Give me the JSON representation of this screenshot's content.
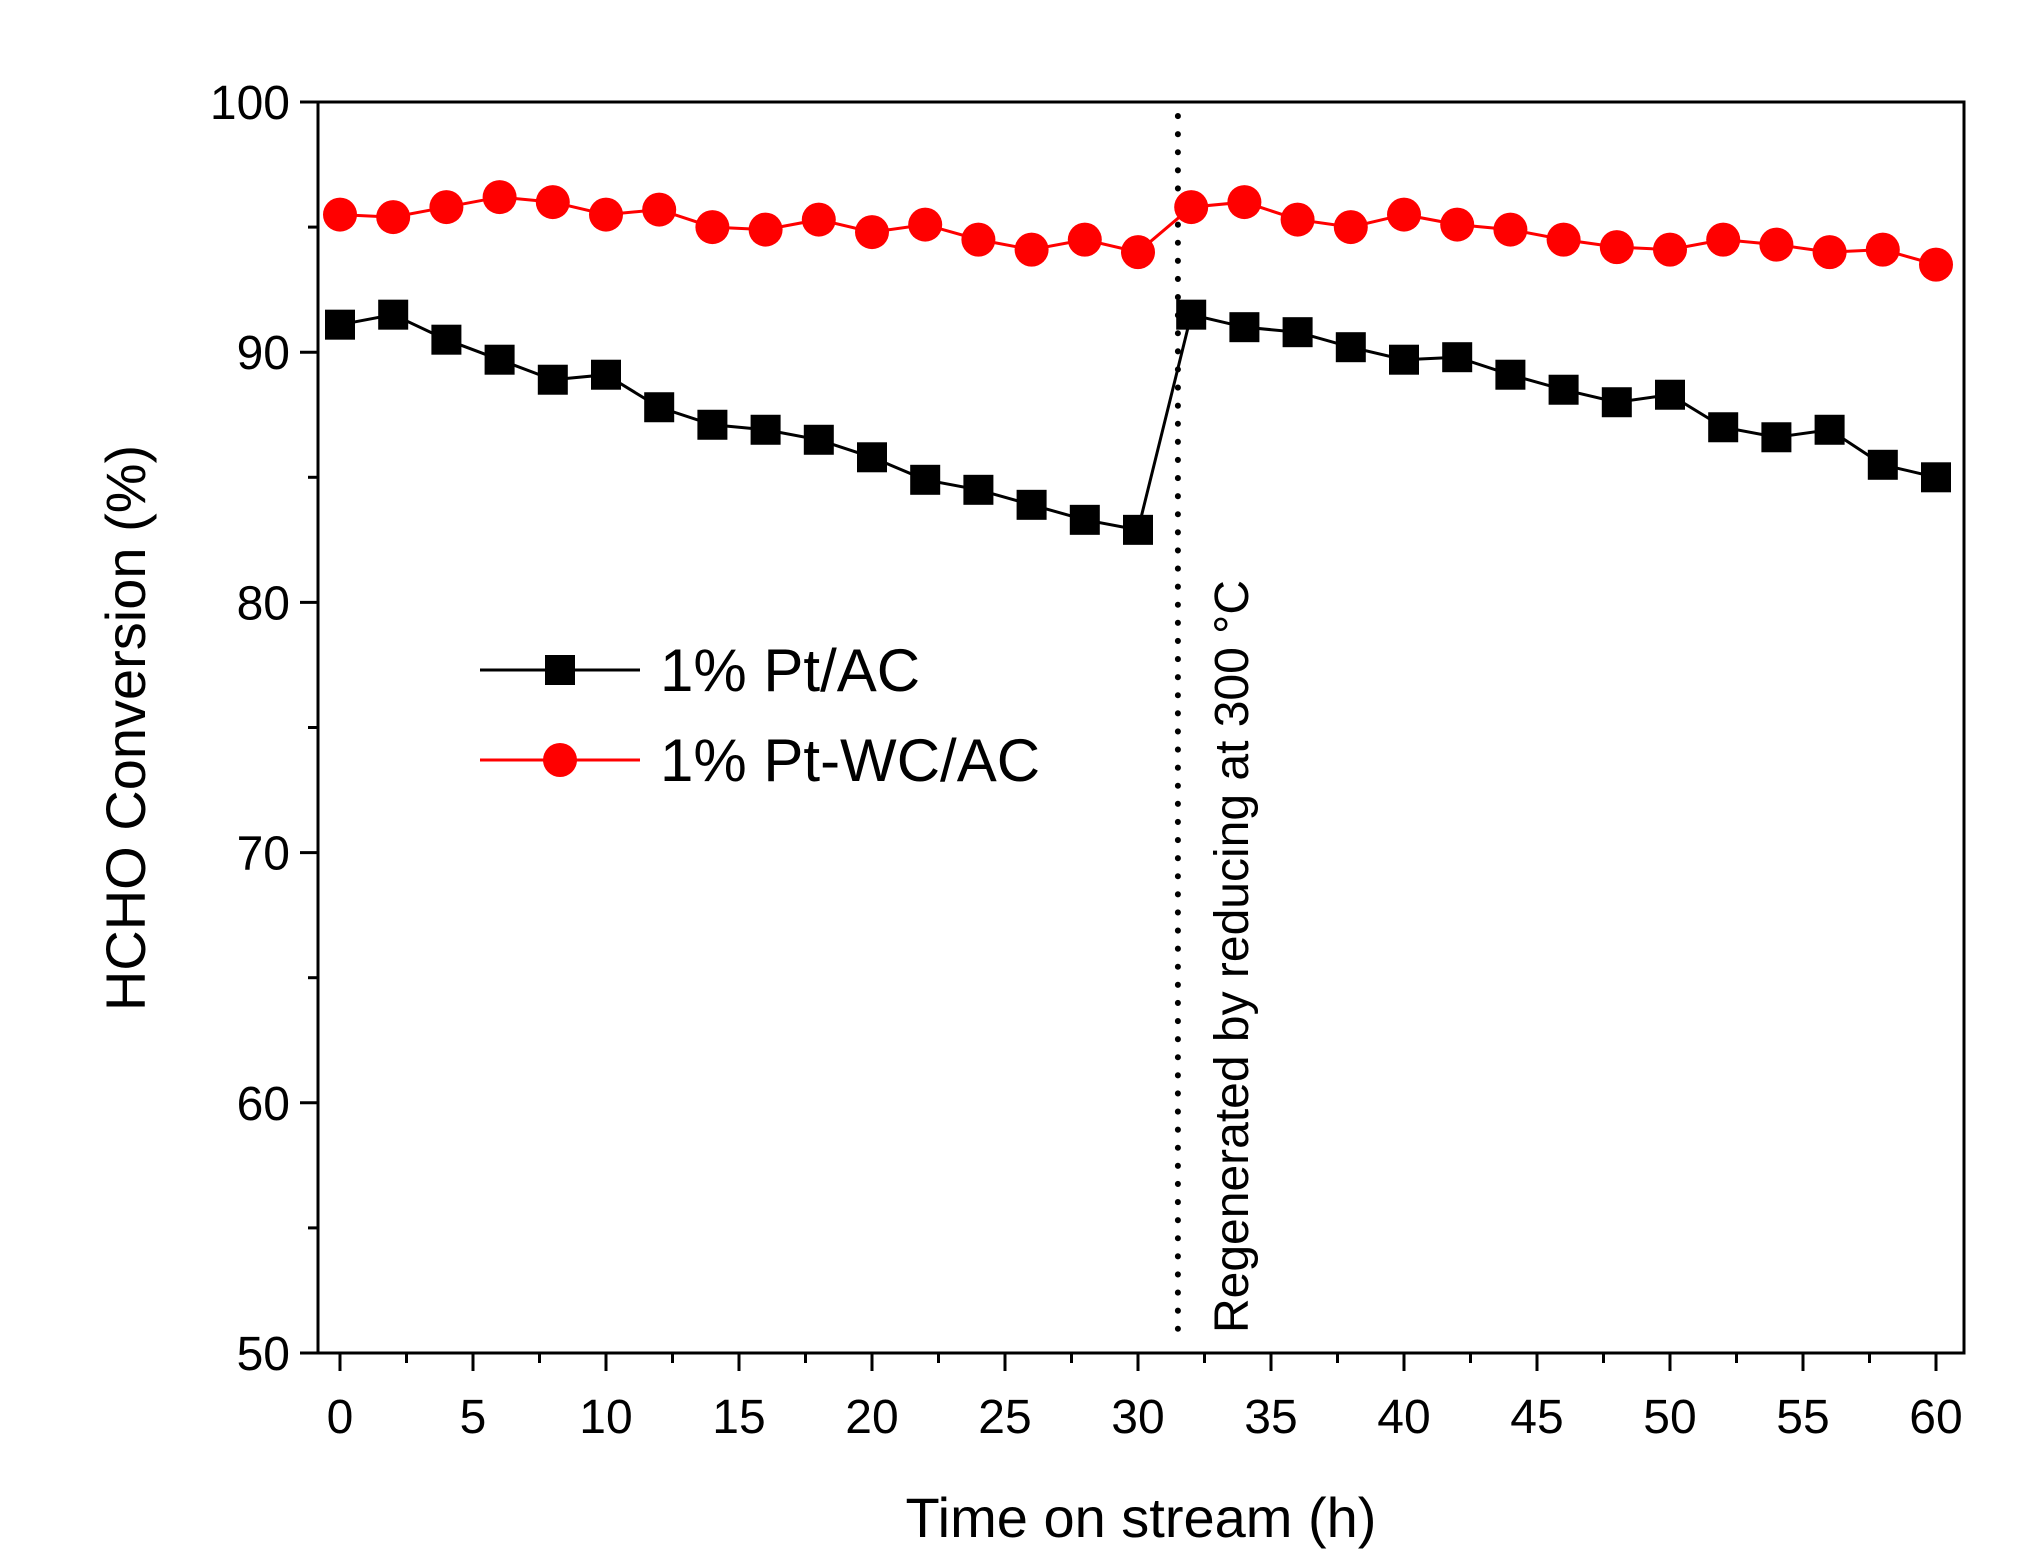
{
  "chart_data": {
    "type": "line",
    "title": "",
    "xlabel": "Time on stream (h)",
    "ylabel": "HCHO Conversion (%)",
    "xlim": [
      -1,
      61
    ],
    "ylim": [
      50,
      100
    ],
    "xticks": [
      0,
      5,
      10,
      15,
      20,
      25,
      30,
      35,
      40,
      45,
      50,
      55,
      60
    ],
    "yticks": [
      50,
      60,
      70,
      80,
      90,
      100
    ],
    "x": [
      0,
      2,
      4,
      6,
      8,
      10,
      12,
      14,
      16,
      18,
      20,
      22,
      24,
      26,
      28,
      30,
      32,
      34,
      36,
      38,
      40,
      42,
      44,
      46,
      48,
      50,
      52,
      54,
      56,
      58,
      60
    ],
    "series": [
      {
        "name": "1% Pt/AC",
        "color": "#000000",
        "marker": "square",
        "values": [
          91.1,
          91.5,
          90.5,
          89.7,
          88.9,
          89.1,
          87.8,
          87.1,
          86.9,
          86.5,
          85.8,
          84.9,
          84.5,
          83.9,
          83.3,
          82.9,
          91.5,
          91.0,
          90.8,
          90.2,
          89.7,
          89.8,
          89.1,
          88.5,
          88.0,
          88.3,
          87.0,
          86.6,
          86.9,
          85.5,
          85.0
        ]
      },
      {
        "name": "1% Pt-WC/AC",
        "color": "#ff0000",
        "marker": "circle",
        "values": [
          95.5,
          95.4,
          95.8,
          96.2,
          96.0,
          95.5,
          95.7,
          95.0,
          94.9,
          95.3,
          94.8,
          95.1,
          94.5,
          94.1,
          94.5,
          94.0,
          95.8,
          96.0,
          95.3,
          95.0,
          95.5,
          95.1,
          94.9,
          94.5,
          94.2,
          94.1,
          94.5,
          94.3,
          94.0,
          94.1,
          93.5
        ]
      }
    ],
    "vline": {
      "x": 31.5,
      "style": "dotted",
      "label": "Regenerated by reducing at 300 °C"
    },
    "legend_position": "center-left",
    "grid": false
  }
}
